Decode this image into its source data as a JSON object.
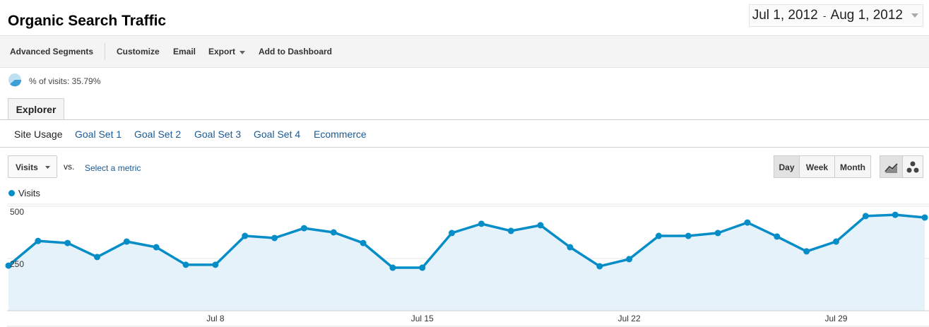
{
  "header": {
    "title": "Organic Search Traffic",
    "date_start": "Jul 1, 2012",
    "date_sep": "-",
    "date_end": "Aug 1, 2012"
  },
  "toolbar": [
    "Advanced Segments",
    "Customize",
    "Email",
    "Export",
    "Add to Dashboard"
  ],
  "segment": "% of visits: 35.79%",
  "tab": "Explorer",
  "subtabs": [
    "Site Usage",
    "Goal Set 1",
    "Goal Set 2",
    "Goal Set 3",
    "Goal Set 4",
    "Ecommerce"
  ],
  "controls": {
    "metric": "Visits",
    "vs": "vs.",
    "select": "Select a metric",
    "periods": [
      "Day",
      "Week",
      "Month"
    ]
  },
  "chart_data": {
    "type": "line",
    "categories": [
      null,
      null,
      null,
      null,
      null,
      null,
      null,
      "Jul 8",
      null,
      null,
      null,
      null,
      null,
      null,
      "Jul 15",
      null,
      null,
      null,
      null,
      null,
      null,
      "Jul 22",
      null,
      null,
      null,
      null,
      null,
      null,
      "Jul 29",
      null,
      null,
      null
    ],
    "series": [
      {
        "name": "Visits",
        "color": "#058dc7",
        "values": [
          216,
          334,
          324,
          257,
          331,
          304,
          220,
          220,
          358,
          348,
          395,
          375,
          324,
          206,
          206,
          372,
          416,
          382,
          409,
          304,
          213,
          247,
          358,
          358,
          372,
          422,
          355,
          284,
          331,
          453,
          459,
          446
        ]
      }
    ],
    "ylim": [
      0,
      500
    ],
    "yticks": [
      250,
      500
    ],
    "grid": true,
    "area": true
  }
}
